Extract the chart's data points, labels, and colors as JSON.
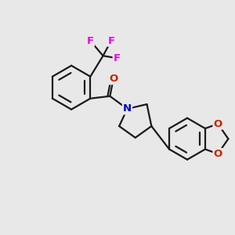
{
  "background_color": "#e8e8e8",
  "bond_color": "#1a1a1a",
  "F_color": "#ee00ee",
  "O_color": "#cc2200",
  "N_color": "#0000cc",
  "bond_width": 1.6,
  "font_size_atom": 9.5,
  "fig_size": [
    3.0,
    3.0
  ],
  "dpi": 100,
  "xlim": [
    0,
    10
  ],
  "ylim": [
    0,
    10
  ]
}
